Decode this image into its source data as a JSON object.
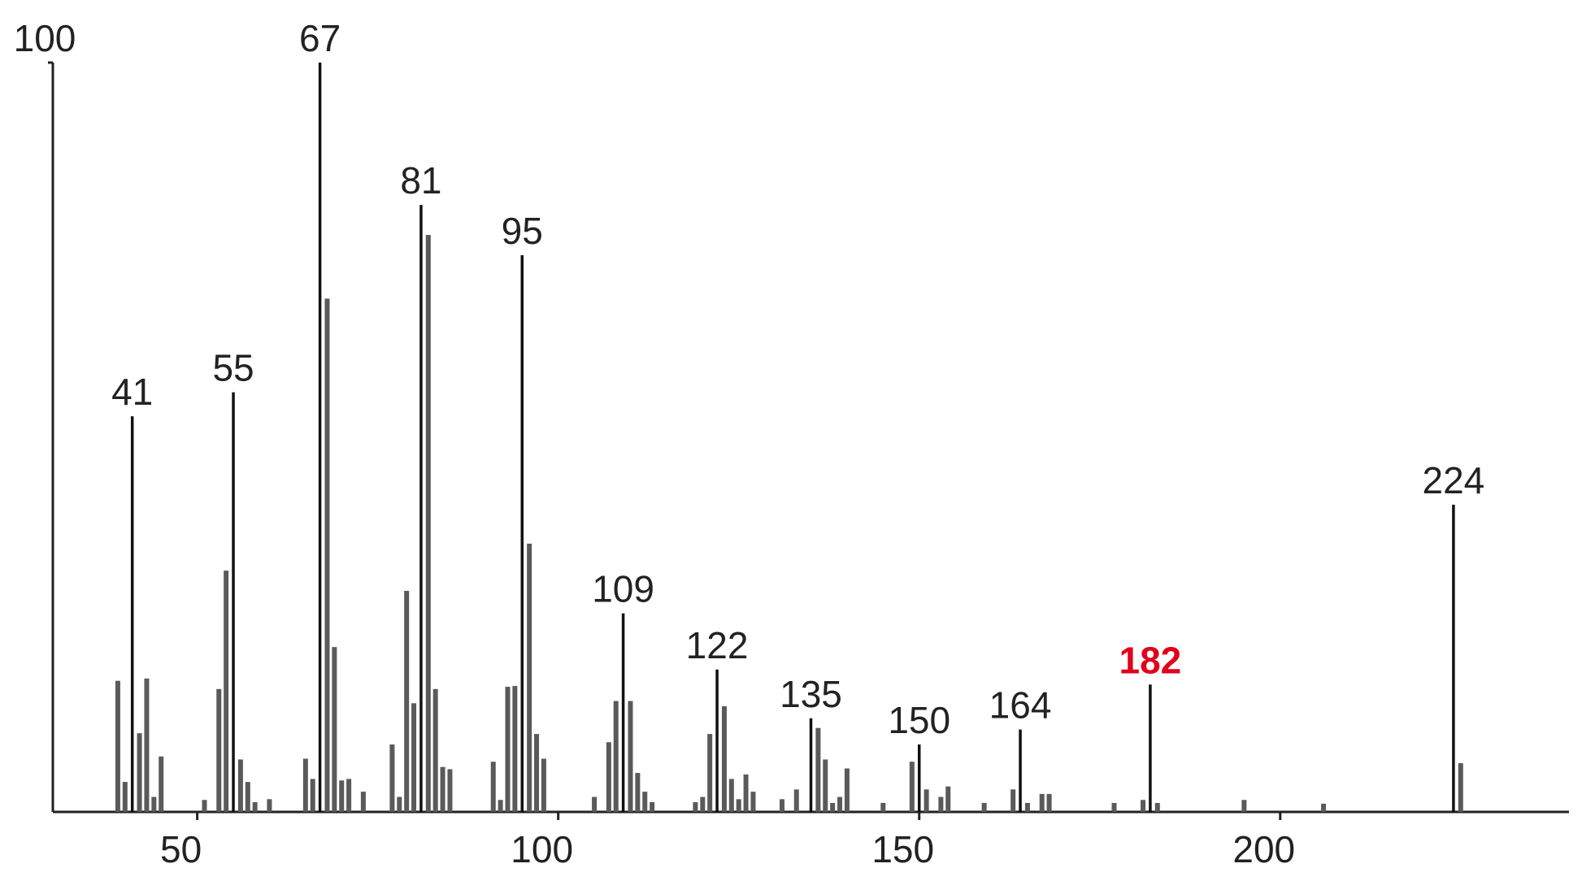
{
  "chart_data": {
    "type": "stick",
    "x": [
      39,
      40,
      41,
      42,
      43,
      44,
      45,
      51,
      53,
      54,
      55,
      56,
      57,
      58,
      60,
      65,
      66,
      67,
      68,
      69,
      70,
      71,
      73,
      77,
      78,
      79,
      80,
      81,
      82,
      83,
      84,
      85,
      91,
      92,
      93,
      94,
      95,
      96,
      97,
      98,
      105,
      107,
      108,
      109,
      110,
      111,
      112,
      113,
      119,
      120,
      121,
      122,
      123,
      124,
      125,
      126,
      127,
      131,
      133,
      135,
      136,
      137,
      138,
      139,
      140,
      145,
      149,
      150,
      151,
      153,
      154,
      159,
      163,
      164,
      165,
      167,
      168,
      177,
      181,
      182,
      183,
      195,
      206,
      224,
      225
    ],
    "values": [
      17.5,
      4,
      52.8,
      10.5,
      17.8,
      2,
      7.4,
      1.6,
      16.4,
      32.2,
      56,
      7,
      4,
      1.3,
      1.7,
      7.1,
      4.4,
      100,
      68.5,
      22,
      4.2,
      4.4,
      2.7,
      9,
      2,
      29.5,
      14.5,
      81,
      77,
      16.4,
      6,
      5.7,
      6.7,
      1.6,
      16.7,
      16.8,
      74.3,
      35.8,
      10.4,
      7.1,
      2,
      9.3,
      14.8,
      26.5,
      14.8,
      5.2,
      2.7,
      1.3,
      1.3,
      2,
      10.4,
      19,
      14.1,
      4.4,
      1.7,
      5,
      2.7,
      1.7,
      3,
      12.5,
      11.2,
      7,
      1.2,
      2,
      5.8,
      1.2,
      6.7,
      9,
      3,
      2,
      3.4,
      1.2,
      3,
      11,
      1.2,
      2.4,
      2.4,
      1.2,
      1.6,
      17,
      1.2,
      1.6,
      1.1,
      41,
      6.5
    ],
    "labeled_peaks": [
      41,
      55,
      67,
      81,
      95,
      109,
      122,
      135,
      150,
      164,
      182,
      224
    ],
    "highlight": 182,
    "highlight_color": "#e0001b",
    "color": "#5a5a5a",
    "xlim": [
      30,
      240
    ],
    "xticks": [
      50,
      100,
      150,
      200
    ],
    "ylim": [
      0,
      100
    ],
    "yticks": [
      100
    ]
  }
}
